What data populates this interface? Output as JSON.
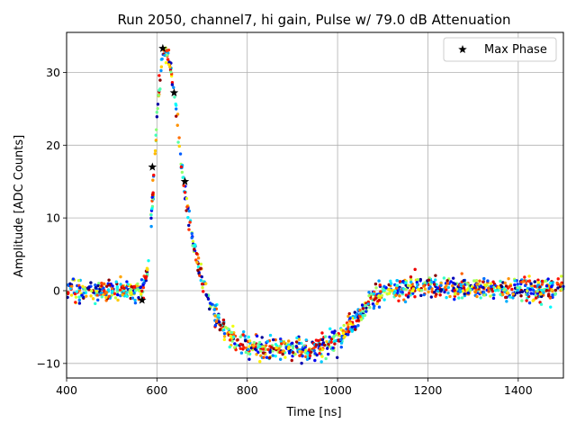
{
  "chart_data": {
    "type": "scatter",
    "title": "Run 2050, channel7, hi gain, Pulse w/ 79.0 dB Attenuation",
    "xlabel": "Time [ns]",
    "ylabel": "Amplitude [ADC Counts]",
    "xlim": [
      400,
      1500
    ],
    "ylim": [
      -12,
      35.5
    ],
    "xticks": [
      400,
      600,
      800,
      1000,
      1200,
      1400
    ],
    "yticks": [
      -10,
      0,
      10,
      20,
      30
    ],
    "xtick_labels": [
      "400",
      "600",
      "800",
      "1000",
      "1200",
      "1400"
    ],
    "ytick_labels": [
      "−10",
      "0",
      "10",
      "20",
      "30"
    ],
    "grid": true,
    "legend_position": "top-right",
    "colormap": "jet",
    "pulse_profile": {
      "x": [
        400,
        560,
        570,
        580,
        590,
        600,
        610,
        620,
        630,
        640,
        650,
        660,
        670,
        680,
        690,
        700,
        720,
        740,
        760,
        780,
        800,
        850,
        900,
        950,
        1000,
        1020,
        1040,
        1060,
        1080,
        1100,
        1150,
        1200,
        1300,
        1400,
        1500
      ],
      "y": [
        0,
        0,
        0.5,
        3,
        12,
        24,
        31.5,
        33,
        31,
        26,
        20,
        14,
        10,
        6.5,
        4,
        1.5,
        -2,
        -4.5,
        -6,
        -7,
        -7.5,
        -8,
        -8,
        -8,
        -7,
        -5.5,
        -4,
        -2.5,
        -1,
        0,
        0.3,
        0.5,
        0.3,
        0.2,
        0.2
      ]
    },
    "series": [
      {
        "name": "Max Phase",
        "marker": "star",
        "color": "#000000",
        "x": [
          567,
          590,
          613,
          638,
          662
        ],
        "y": [
          -1.3,
          17.0,
          33.3,
          27.2,
          15.0
        ]
      }
    ]
  }
}
